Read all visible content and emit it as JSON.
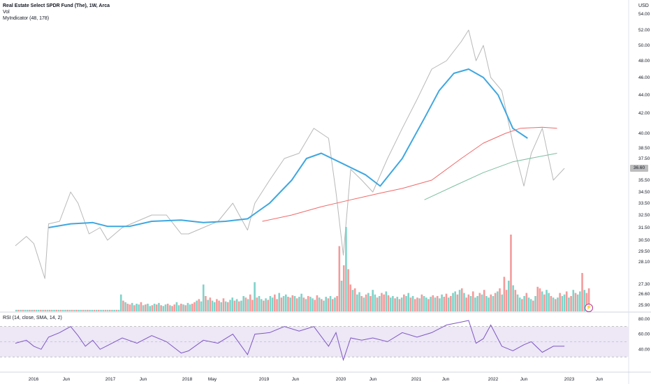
{
  "header": {
    "title": "Real Estate Select SPDR Fund (The), 1W, Arca",
    "vol_label": "Vol",
    "indicator_label": "MyIndicator (48, 178)",
    "rsi_label": "RSI (14, close, SMA, 14, 2)",
    "currency": "USD",
    "current_price": "36.60",
    "bolt_icon": "lightning-icon"
  },
  "colors": {
    "price": "#b8b8b8",
    "ma_fast": "#3fa7e0",
    "ma_slow_red": "#f06a6a",
    "ma_slow_green": "#7dbf9f",
    "vol_up": "#7fd3c9",
    "vol_down": "#f59a9a",
    "rsi_line": "#7e57c2",
    "rsi_band": "#ede7f6"
  },
  "chart_data": [
    {
      "type": "line",
      "title": "Real Estate Select SPDR Fund (The), 1W, Arca",
      "y_ticks": [
        "54.00",
        "52.00",
        "50.00",
        "48.00",
        "46.00",
        "44.00",
        "42.00",
        "40.00",
        "38.50",
        "37.50",
        "36.60",
        "35.50",
        "34.50",
        "33.50",
        "32.50",
        "31.50",
        "30.50",
        "29.50",
        "28.10",
        "27.30",
        "26.60",
        "25.90"
      ],
      "x_ticks": [
        "2016",
        "Jun",
        "2017",
        "Jun",
        "2018",
        "May",
        "2019",
        "Jun",
        "2020",
        "Jun",
        "2021",
        "Jun",
        "2022",
        "Jun",
        "2023",
        "Jun"
      ],
      "series": [
        {
          "name": "close",
          "x": [
            2015.75,
            2015.9,
            2016.0,
            2016.15,
            2016.2,
            2016.35,
            2016.5,
            2016.6,
            2016.75,
            2016.9,
            2017.0,
            2017.2,
            2017.4,
            2017.6,
            2017.8,
            2018.0,
            2018.1,
            2018.3,
            2018.5,
            2018.7,
            2018.9,
            2019.0,
            2019.2,
            2019.4,
            2019.6,
            2019.8,
            2020.0,
            2020.1,
            2020.2,
            2020.3,
            2020.45,
            2020.6,
            2020.8,
            2021.0,
            2021.2,
            2021.4,
            2021.6,
            2021.8,
            2021.9,
            2022.0,
            2022.1,
            2022.2,
            2022.35,
            2022.5,
            2022.65,
            2022.75,
            2022.9,
            2023.05,
            2023.2
          ],
          "y": [
            30.0,
            30.8,
            30.2,
            27.5,
            31.8,
            32.0,
            34.5,
            33.5,
            31.0,
            31.5,
            30.5,
            31.5,
            32.0,
            32.5,
            32.5,
            31.0,
            31.0,
            31.5,
            32.0,
            33.5,
            31.3,
            33.5,
            35.5,
            37.5,
            38.0,
            40.5,
            39.5,
            34.5,
            29.0,
            36.5,
            35.5,
            34.5,
            37.5,
            40.5,
            43.5,
            47.0,
            48.0,
            50.5,
            52.0,
            48.0,
            50.0,
            46.0,
            44.5,
            39.0,
            35.0,
            38.0,
            40.5,
            35.5,
            36.6
          ]
        },
        {
          "name": "MyIndicator fast",
          "x": [
            2016.2,
            2016.5,
            2016.8,
            2017.0,
            2017.3,
            2017.6,
            2018.0,
            2018.3,
            2018.6,
            2018.9,
            2019.2,
            2019.5,
            2019.7,
            2019.9,
            2020.2,
            2020.5,
            2020.7,
            2021.0,
            2021.3,
            2021.5,
            2021.7,
            2021.9,
            2022.1,
            2022.3,
            2022.5,
            2022.7
          ],
          "y": [
            31.5,
            31.8,
            31.9,
            31.6,
            31.6,
            32.0,
            32.1,
            31.9,
            32.0,
            32.2,
            33.5,
            35.5,
            37.5,
            38.0,
            37.0,
            36.0,
            35.0,
            37.5,
            41.5,
            44.5,
            46.5,
            47.0,
            46.0,
            44.0,
            40.5,
            39.5
          ]
        },
        {
          "name": "MyIndicator slow",
          "x": [
            2019.1,
            2019.5,
            2019.9,
            2020.3,
            2020.7,
            2021.0,
            2021.4,
            2021.8,
            2022.1,
            2022.4,
            2022.6,
            2022.9,
            2023.1
          ],
          "y": [
            32.0,
            32.5,
            33.2,
            33.8,
            34.4,
            34.8,
            35.5,
            37.5,
            39.0,
            40.0,
            40.5,
            40.6,
            40.5
          ]
        },
        {
          "name": "MyIndicator slow 2",
          "x": [
            2021.3,
            2021.7,
            2022.1,
            2022.5,
            2022.8,
            2023.1
          ],
          "y": [
            33.8,
            35.0,
            36.2,
            37.2,
            37.6,
            38.0
          ]
        }
      ]
    },
    {
      "type": "bar",
      "title": "Vol",
      "note": "weekly volume bars, colored by up/down week",
      "volume_scale_max": 100,
      "volumes": [
        2,
        2,
        2,
        2,
        2,
        2,
        2,
        2,
        2,
        2,
        2,
        2,
        2,
        2,
        2,
        2,
        2,
        2,
        2,
        2,
        2,
        2,
        2,
        2,
        2,
        2,
        2,
        2,
        2,
        2,
        2,
        2,
        2,
        2,
        2,
        2,
        2,
        2,
        2,
        2,
        2,
        2,
        2,
        2,
        2,
        2,
        2,
        22,
        14,
        12,
        10,
        9,
        11,
        8,
        10,
        9,
        12,
        8,
        9,
        10,
        7,
        8,
        10,
        9,
        11,
        8,
        7,
        9,
        10,
        8,
        7,
        9,
        12,
        8,
        10,
        9,
        8,
        11,
        9,
        10,
        12,
        14,
        16,
        13,
        35,
        20,
        15,
        18,
        14,
        12,
        16,
        14,
        12,
        17,
        13,
        12,
        15,
        18,
        14,
        16,
        13,
        14,
        20,
        18,
        16,
        22,
        15,
        38,
        18,
        20,
        16,
        14,
        17,
        15,
        20,
        18,
        22,
        16,
        24,
        18,
        20,
        22,
        19,
        18,
        21,
        20,
        17,
        19,
        23,
        18,
        16,
        20,
        19,
        17,
        15,
        21,
        18,
        16,
        14,
        19,
        17,
        20,
        16,
        18,
        20,
        85,
        40,
        60,
        110,
        55,
        35,
        28,
        30,
        22,
        25,
        20,
        18,
        22,
        24,
        20,
        28,
        22,
        18,
        20,
        24,
        22,
        26,
        21,
        18,
        20,
        17,
        19,
        16,
        18,
        22,
        20,
        24,
        18,
        20,
        16,
        18,
        17,
        22,
        20,
        18,
        16,
        19,
        21,
        18,
        20,
        17,
        22,
        19,
        23,
        18,
        20,
        24,
        26,
        22,
        28,
        30,
        24,
        18,
        22,
        20,
        26,
        18,
        20,
        24,
        22,
        28,
        20,
        18,
        22,
        20,
        24,
        26,
        30,
        22,
        45,
        28,
        40,
        100,
        34,
        28,
        22,
        18,
        16,
        20,
        24,
        18,
        16,
        14,
        20,
        32,
        30,
        26,
        22,
        28,
        24,
        20,
        18,
        16,
        18,
        24,
        20,
        22,
        26,
        18,
        20,
        28,
        24,
        22,
        26,
        50,
        28,
        24,
        30
      ],
      "up": [
        1,
        0,
        1,
        0,
        1,
        1,
        0,
        1,
        0,
        1,
        1,
        0,
        1,
        0,
        1,
        0,
        1,
        1,
        0,
        1,
        0,
        1,
        1,
        0,
        1,
        0,
        1,
        0,
        1,
        1,
        0,
        1,
        0,
        1,
        1,
        0,
        1,
        0,
        1,
        1,
        0,
        1,
        0,
        1,
        1,
        0,
        1,
        1,
        0,
        1,
        0,
        0,
        1,
        0,
        1,
        1,
        0,
        1,
        0,
        1,
        1,
        0,
        1,
        0,
        1,
        0,
        1,
        1,
        0,
        1,
        0,
        0,
        1,
        1,
        0,
        1,
        0,
        1,
        1,
        0,
        0,
        1,
        0,
        1,
        1,
        0,
        1,
        0,
        1,
        1,
        0,
        0,
        1,
        0,
        1,
        0,
        1,
        1,
        0,
        1,
        0,
        1,
        1,
        0,
        1,
        0,
        0,
        1,
        0,
        1,
        1,
        0,
        1,
        0,
        1,
        1,
        0,
        0,
        1,
        0,
        1,
        1,
        0,
        1,
        0,
        1,
        0,
        1,
        1,
        0,
        1,
        0,
        1,
        1,
        0,
        0,
        1,
        0,
        1,
        1,
        0,
        1,
        0,
        1,
        0,
        0,
        1,
        0,
        1,
        0,
        0,
        1,
        0,
        1,
        1,
        0,
        1,
        0,
        1,
        0,
        1,
        1,
        0,
        1,
        0,
        0,
        1,
        0,
        1,
        1,
        0,
        1,
        0,
        1,
        0,
        1,
        1,
        0,
        1,
        0,
        0,
        1,
        0,
        1,
        1,
        0,
        1,
        0,
        1,
        0,
        1,
        1,
        0,
        0,
        1,
        0,
        1,
        1,
        0,
        1,
        0,
        1,
        0,
        0,
        1,
        0,
        1,
        1,
        0,
        1,
        0,
        1,
        1,
        0,
        1,
        0,
        1,
        0,
        1,
        0,
        0,
        1,
        0,
        1,
        0,
        1,
        1,
        0,
        1,
        0,
        1,
        1,
        0,
        1,
        0,
        0,
        1,
        0,
        1,
        1,
        0,
        1,
        0,
        1,
        0,
        1,
        1,
        0,
        1,
        0,
        1,
        0,
        1,
        1,
        0,
        1,
        0,
        0
      ]
    },
    {
      "type": "line",
      "title": "RSI (14, close, SMA, 14, 2)",
      "y_ticks": [
        "80.00",
        "60.00",
        "40.00"
      ],
      "band": [
        30,
        70
      ],
      "series": [
        {
          "name": "RSI",
          "x": [
            2015.75,
            2015.9,
            2016.0,
            2016.1,
            2016.2,
            2016.35,
            2016.5,
            2016.6,
            2016.7,
            2016.8,
            2016.9,
            2017.0,
            2017.2,
            2017.4,
            2017.6,
            2017.8,
            2018.0,
            2018.1,
            2018.3,
            2018.5,
            2018.7,
            2018.9,
            2019.0,
            2019.2,
            2019.4,
            2019.6,
            2019.8,
            2020.0,
            2020.1,
            2020.2,
            2020.3,
            2020.45,
            2020.6,
            2020.8,
            2021.0,
            2021.2,
            2021.4,
            2021.6,
            2021.8,
            2021.9,
            2022.0,
            2022.1,
            2022.2,
            2022.35,
            2022.5,
            2022.65,
            2022.75,
            2022.9,
            2023.05,
            2023.2
          ],
          "y": [
            48,
            52,
            44,
            40,
            56,
            62,
            70,
            58,
            44,
            52,
            40,
            45,
            55,
            48,
            58,
            50,
            35,
            38,
            52,
            48,
            60,
            33,
            60,
            62,
            70,
            64,
            70,
            44,
            62,
            26,
            55,
            52,
            55,
            50,
            62,
            56,
            62,
            72,
            76,
            78,
            48,
            54,
            72,
            44,
            38,
            46,
            50,
            36,
            44,
            44
          ]
        }
      ]
    }
  ]
}
